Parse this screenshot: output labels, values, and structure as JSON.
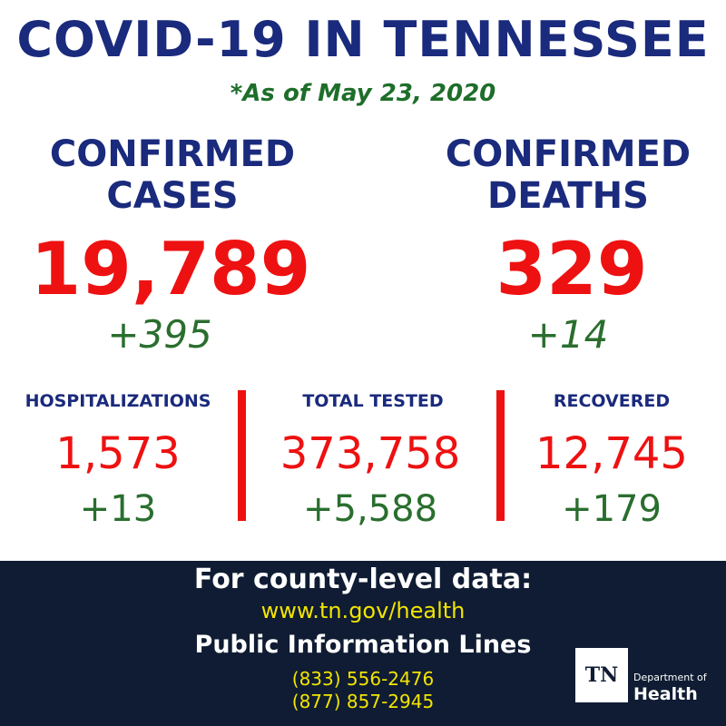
{
  "title": "COVID-19 IN TENNESSEE",
  "as_of": "*As of May 23, 2020",
  "confirmed_cases": {
    "label_line1": "CONFIRMED",
    "label_line2": "CASES",
    "value": "19,789",
    "delta": "+395"
  },
  "confirmed_deaths": {
    "label_line1": "CONFIRMED",
    "label_line2": "DEATHS",
    "value": "329",
    "delta": "+14"
  },
  "hospitalizations": {
    "label": "HOSPITALIZATIONS",
    "value": "1,573",
    "delta": "+13"
  },
  "total_tested": {
    "label": "TOTAL TESTED",
    "value": "373,758",
    "delta": "+5,588"
  },
  "recovered": {
    "label": "RECOVERED",
    "value": "12,745",
    "delta": "+179"
  },
  "footer": {
    "heading": "For county-level data:",
    "url": "www.tn.gov/health",
    "lines_heading": "Public Information Lines",
    "phone1": "(833) 556-2476",
    "phone2": "(877) 857-2945"
  },
  "logo": {
    "mark": "TN",
    "dept": "Department of",
    "name": "Health"
  },
  "colors": {
    "navy": "#1a2a7c",
    "red": "#ee1111",
    "green": "#2a6e2e",
    "footer_bg": "#0f1c33",
    "yellow": "#f2e400"
  }
}
